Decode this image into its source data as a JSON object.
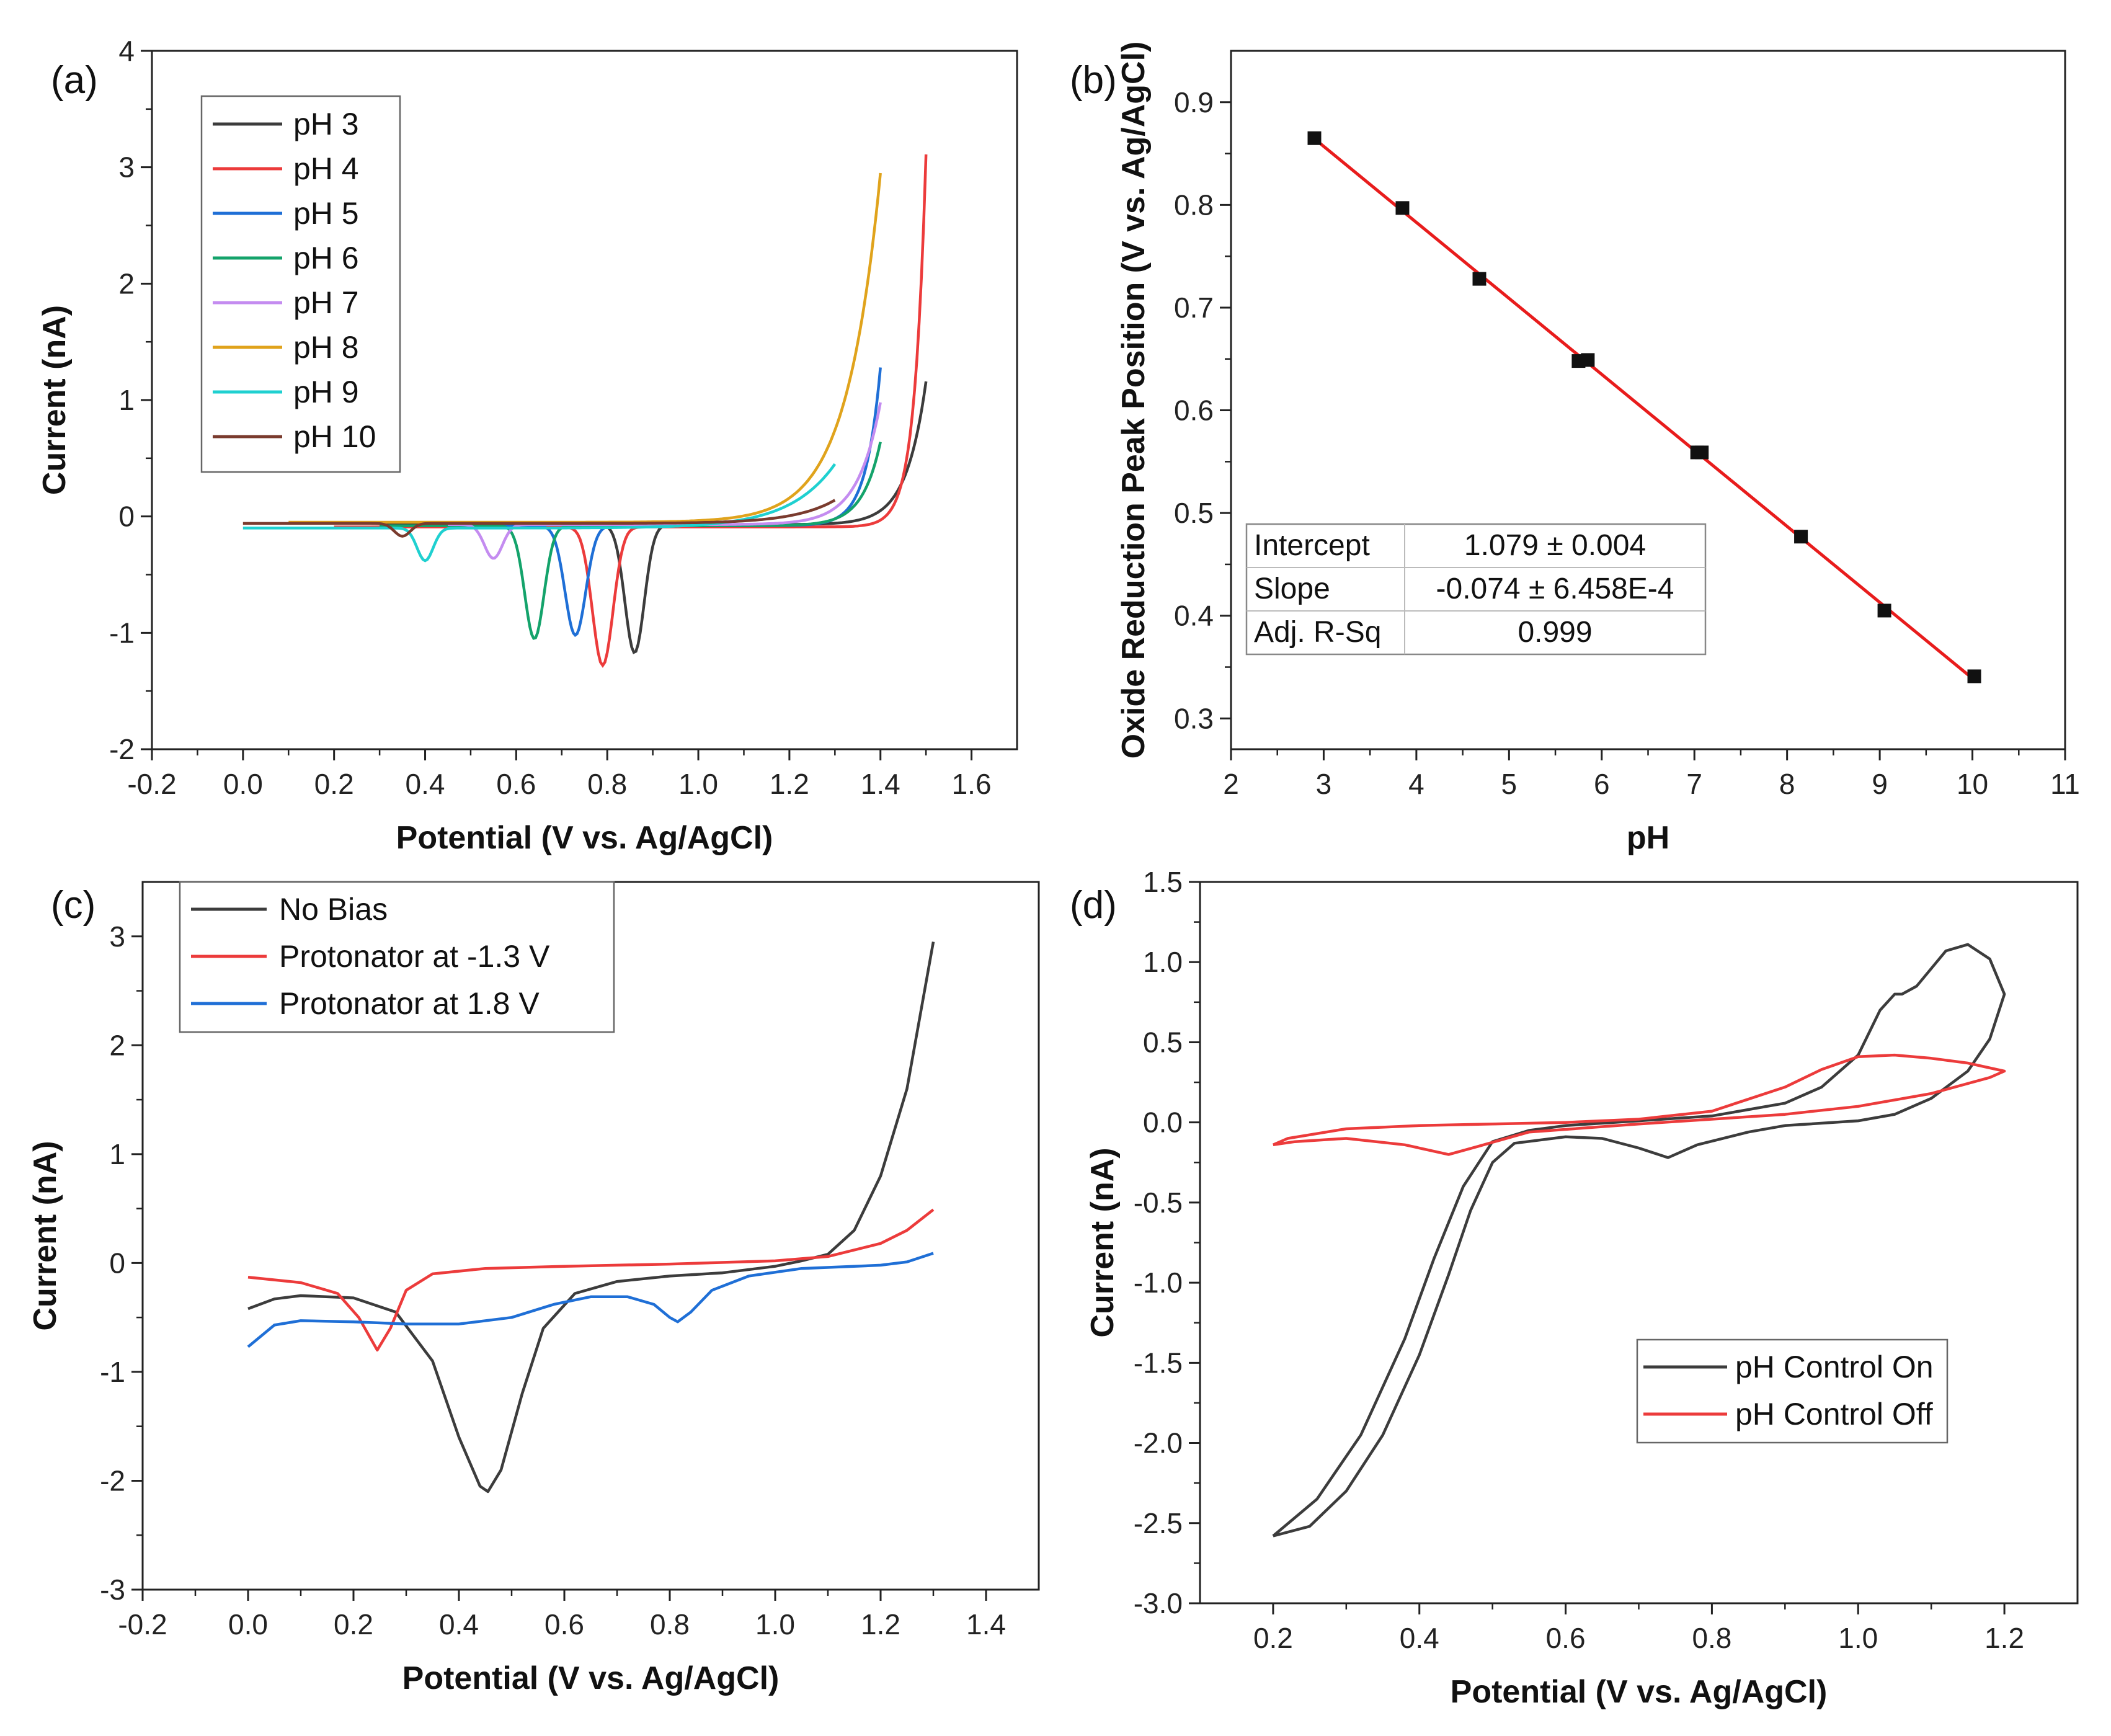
{
  "chart_data": [
    {
      "panel": "(a)",
      "type": "line",
      "xlabel": "Potential (V vs. Ag/AgCl)",
      "ylabel": "Current (nA)",
      "xlim": [
        -0.2,
        1.7
      ],
      "ylim": [
        -2,
        4
      ],
      "xticks": [
        -0.2,
        0.0,
        0.2,
        0.4,
        0.6,
        0.8,
        1.0,
        1.2,
        1.4,
        1.6
      ],
      "yticks": [
        -2,
        -1,
        0,
        1,
        2,
        3,
        4
      ],
      "legend_position": "top-left",
      "series": [
        {
          "name": "pH 3",
          "color": "#3c3c3c",
          "start": 0.3,
          "end": 1.5,
          "baseline": -0.07,
          "peak_x": 0.86,
          "peak_y": -1.17,
          "peak_w": 0.03,
          "end_y": 1.23,
          "rise_k": 0.043
        },
        {
          "name": "pH 4",
          "color": "#ec3b3b",
          "start": 0.2,
          "end": 1.5,
          "baseline": -0.09,
          "peak_x": 0.79,
          "peak_y": -1.28,
          "peak_w": 0.032,
          "end_y": 3.2,
          "rise_k": 0.025
        },
        {
          "name": "pH 5",
          "color": "#1f6fd6",
          "start": 0.35,
          "end": 1.4,
          "baseline": -0.08,
          "peak_x": 0.73,
          "peak_y": -1.02,
          "peak_w": 0.032,
          "end_y": 1.36,
          "rise_k": 0.032
        },
        {
          "name": "pH 6",
          "color": "#14a36b",
          "start": 0.3,
          "end": 1.4,
          "baseline": -0.08,
          "peak_x": 0.64,
          "peak_y": -1.05,
          "peak_w": 0.03,
          "end_y": 0.72,
          "rise_k": 0.04
        },
        {
          "name": "pH 7",
          "color": "#c48cf0",
          "start": 0.45,
          "end": 1.4,
          "baseline": -0.07,
          "peak_x": 0.55,
          "peak_y": -0.36,
          "peak_w": 0.028,
          "end_y": 1.05,
          "rise_k": 0.05
        },
        {
          "name": "pH 8",
          "color": "#e0a31c",
          "start": 0.1,
          "end": 1.4,
          "baseline": -0.05,
          "peak_x": 0.6,
          "peak_y": -0.05,
          "peak_w": 0.05,
          "end_y": 3.0,
          "rise_k": 0.075
        },
        {
          "name": "pH 9",
          "color": "#1fd0d0",
          "start": 0.0,
          "end": 1.3,
          "baseline": -0.1,
          "peak_x": 0.4,
          "peak_y": -0.38,
          "peak_w": 0.025,
          "end_y": 0.55,
          "rise_k": 0.1
        },
        {
          "name": "pH 10",
          "color": "#7a3b2e",
          "start": 0.0,
          "end": 1.3,
          "baseline": -0.06,
          "peak_x": 0.35,
          "peak_y": -0.17,
          "peak_w": 0.025,
          "end_y": 0.2,
          "rise_k": 0.09
        }
      ]
    },
    {
      "panel": "(b)",
      "type": "scatter",
      "xlabel": "pH",
      "ylabel": "Oxide Reduction Peak Position (V vs. Ag/AgCl)",
      "xlim": [
        2,
        11
      ],
      "ylim": [
        0.27,
        0.95
      ],
      "xticks": [
        2,
        3,
        4,
        5,
        6,
        7,
        8,
        9,
        10,
        11
      ],
      "yticks": [
        0.3,
        0.4,
        0.5,
        0.6,
        0.7,
        0.8,
        0.9
      ],
      "points": [
        {
          "x": 2.9,
          "y": 0.865
        },
        {
          "x": 3.85,
          "y": 0.797
        },
        {
          "x": 4.68,
          "y": 0.728
        },
        {
          "x": 5.75,
          "y": 0.648
        },
        {
          "x": 5.85,
          "y": 0.649
        },
        {
          "x": 7.03,
          "y": 0.559
        },
        {
          "x": 7.08,
          "y": 0.559
        },
        {
          "x": 8.15,
          "y": 0.477
        },
        {
          "x": 9.05,
          "y": 0.405
        },
        {
          "x": 10.02,
          "y": 0.341
        }
      ],
      "fit": {
        "intercept_value": 1.079,
        "slope_value": -0.074,
        "x_range": [
          2.9,
          10.02
        ],
        "color": "#e81c1c",
        "table": [
          {
            "label": "Intercept",
            "value": "1.079 ± 0.004"
          },
          {
            "label": "Slope",
            "value": "-0.074 ± 6.458E-4"
          },
          {
            "label": "Adj. R-Sq",
            "value": "0.999"
          }
        ]
      }
    },
    {
      "panel": "(c)",
      "type": "line",
      "xlabel": "Potential (V vs. Ag/AgCl)",
      "ylabel": "Current (nA)",
      "xlim": [
        -0.2,
        1.5
      ],
      "ylim": [
        -3,
        3.5
      ],
      "xticks": [
        -0.2,
        0.0,
        0.2,
        0.4,
        0.6,
        0.8,
        1.0,
        1.2,
        1.4
      ],
      "yticks": [
        -3,
        -2,
        -1,
        0,
        1,
        2,
        3
      ],
      "legend_position": "top-left",
      "series": [
        {
          "name": "No Bias",
          "color": "#3c3c3c",
          "points": [
            [
              0.0,
              -0.42
            ],
            [
              0.05,
              -0.33
            ],
            [
              0.1,
              -0.3
            ],
            [
              0.2,
              -0.32
            ],
            [
              0.28,
              -0.45
            ],
            [
              0.35,
              -0.9
            ],
            [
              0.4,
              -1.6
            ],
            [
              0.44,
              -2.05
            ],
            [
              0.455,
              -2.1
            ],
            [
              0.48,
              -1.9
            ],
            [
              0.52,
              -1.2
            ],
            [
              0.56,
              -0.6
            ],
            [
              0.62,
              -0.28
            ],
            [
              0.7,
              -0.17
            ],
            [
              0.8,
              -0.12
            ],
            [
              0.9,
              -0.09
            ],
            [
              1.0,
              -0.03
            ],
            [
              1.05,
              0.02
            ],
            [
              1.1,
              0.08
            ],
            [
              1.15,
              0.3
            ],
            [
              1.2,
              0.8
            ],
            [
              1.25,
              1.6
            ],
            [
              1.3,
              2.95
            ]
          ]
        },
        {
          "name": "Protonator at -1.3 V",
          "color": "#ec3b3b",
          "points": [
            [
              0.0,
              -0.13
            ],
            [
              0.1,
              -0.18
            ],
            [
              0.17,
              -0.28
            ],
            [
              0.21,
              -0.5
            ],
            [
              0.245,
              -0.8
            ],
            [
              0.27,
              -0.6
            ],
            [
              0.3,
              -0.25
            ],
            [
              0.35,
              -0.1
            ],
            [
              0.45,
              -0.05
            ],
            [
              0.6,
              -0.03
            ],
            [
              0.8,
              -0.01
            ],
            [
              1.0,
              0.02
            ],
            [
              1.1,
              0.06
            ],
            [
              1.2,
              0.18
            ],
            [
              1.25,
              0.3
            ],
            [
              1.3,
              0.49
            ]
          ]
        },
        {
          "name": "Protonator at 1.8 V",
          "color": "#1f6fd6",
          "points": [
            [
              0.0,
              -0.77
            ],
            [
              0.05,
              -0.57
            ],
            [
              0.1,
              -0.53
            ],
            [
              0.2,
              -0.54
            ],
            [
              0.3,
              -0.56
            ],
            [
              0.4,
              -0.56
            ],
            [
              0.5,
              -0.5
            ],
            [
              0.58,
              -0.38
            ],
            [
              0.65,
              -0.31
            ],
            [
              0.72,
              -0.31
            ],
            [
              0.77,
              -0.38
            ],
            [
              0.8,
              -0.5
            ],
            [
              0.815,
              -0.54
            ],
            [
              0.84,
              -0.45
            ],
            [
              0.88,
              -0.25
            ],
            [
              0.95,
              -0.12
            ],
            [
              1.05,
              -0.05
            ],
            [
              1.2,
              -0.02
            ],
            [
              1.25,
              0.01
            ],
            [
              1.3,
              0.09
            ]
          ]
        }
      ]
    },
    {
      "panel": "(d)",
      "type": "line",
      "xlabel": "Potential (V vs. Ag/AgCl)",
      "ylabel": "Current (nA)",
      "xlim": [
        0.1,
        1.3
      ],
      "ylim": [
        -3.0,
        1.5
      ],
      "xticks": [
        0.2,
        0.4,
        0.6,
        0.8,
        1.0,
        1.2
      ],
      "yticks": [
        -3.0,
        -2.5,
        -2.0,
        -1.5,
        -1.0,
        -0.5,
        0.0,
        0.5,
        1.0,
        1.5
      ],
      "legend_position": "bottom-right",
      "series": [
        {
          "name": "pH Control On",
          "color": "#3c3c3c",
          "points": [
            [
              0.2,
              -2.58
            ],
            [
              0.25,
              -2.52
            ],
            [
              0.3,
              -2.3
            ],
            [
              0.35,
              -1.95
            ],
            [
              0.4,
              -1.45
            ],
            [
              0.44,
              -0.95
            ],
            [
              0.47,
              -0.55
            ],
            [
              0.5,
              -0.25
            ],
            [
              0.53,
              -0.13
            ],
            [
              0.6,
              -0.09
            ],
            [
              0.65,
              -0.1
            ],
            [
              0.7,
              -0.16
            ],
            [
              0.74,
              -0.22
            ],
            [
              0.78,
              -0.14
            ],
            [
              0.85,
              -0.06
            ],
            [
              0.9,
              -0.02
            ],
            [
              1.0,
              0.01
            ],
            [
              1.05,
              0.05
            ],
            [
              1.1,
              0.15
            ],
            [
              1.15,
              0.32
            ],
            [
              1.18,
              0.52
            ],
            [
              1.2,
              0.8
            ],
            [
              1.18,
              1.02
            ],
            [
              1.15,
              1.11
            ],
            [
              1.12,
              1.07
            ],
            [
              1.08,
              0.85
            ],
            [
              1.06,
              0.8
            ],
            [
              1.05,
              0.8
            ],
            [
              1.03,
              0.7
            ],
            [
              1.0,
              0.42
            ],
            [
              0.95,
              0.22
            ],
            [
              0.9,
              0.12
            ],
            [
              0.8,
              0.04
            ],
            [
              0.7,
              0.01
            ],
            [
              0.6,
              -0.02
            ],
            [
              0.55,
              -0.05
            ],
            [
              0.5,
              -0.12
            ],
            [
              0.46,
              -0.4
            ],
            [
              0.42,
              -0.85
            ],
            [
              0.38,
              -1.35
            ],
            [
              0.32,
              -1.95
            ],
            [
              0.26,
              -2.35
            ],
            [
              0.2,
              -2.58
            ]
          ]
        },
        {
          "name": "pH Control Off",
          "color": "#ec3b3b",
          "points": [
            [
              0.2,
              -0.14
            ],
            [
              0.23,
              -0.12
            ],
            [
              0.3,
              -0.1
            ],
            [
              0.38,
              -0.14
            ],
            [
              0.44,
              -0.2
            ],
            [
              0.48,
              -0.15
            ],
            [
              0.55,
              -0.06
            ],
            [
              0.7,
              -0.01
            ],
            [
              0.8,
              0.02
            ],
            [
              0.9,
              0.05
            ],
            [
              1.0,
              0.1
            ],
            [
              1.1,
              0.18
            ],
            [
              1.18,
              0.28
            ],
            [
              1.2,
              0.32
            ],
            [
              1.15,
              0.37
            ],
            [
              1.1,
              0.4
            ],
            [
              1.05,
              0.42
            ],
            [
              1.0,
              0.41
            ],
            [
              0.95,
              0.33
            ],
            [
              0.9,
              0.22
            ],
            [
              0.8,
              0.07
            ],
            [
              0.7,
              0.02
            ],
            [
              0.6,
              0.0
            ],
            [
              0.5,
              -0.01
            ],
            [
              0.4,
              -0.02
            ],
            [
              0.3,
              -0.04
            ],
            [
              0.22,
              -0.1
            ],
            [
              0.2,
              -0.14
            ]
          ]
        }
      ]
    }
  ]
}
